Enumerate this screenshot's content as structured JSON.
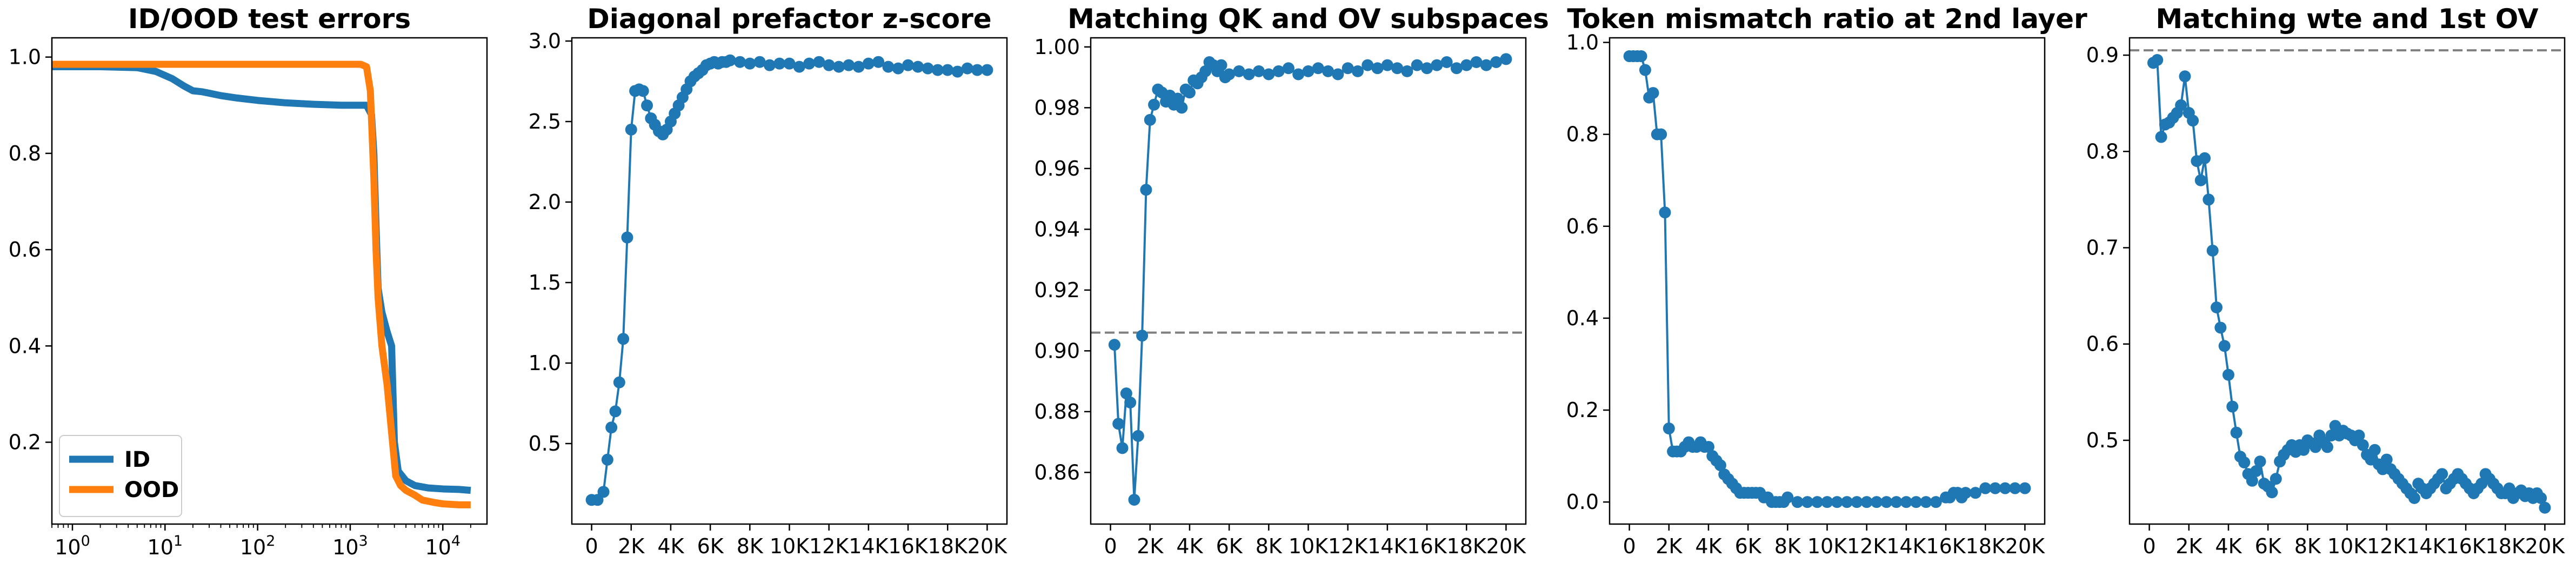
{
  "colors": {
    "blue": "#1f77b4",
    "orange": "#ff7f0e",
    "ref": "#808080"
  },
  "chart_data": [
    {
      "type": "line",
      "title": "ID/OOD test errors",
      "xscale": "log",
      "xlim": [
        0.6,
        30000
      ],
      "ylim": [
        0.03,
        1.04
      ],
      "xticks": [
        1,
        10,
        100,
        1000,
        10000
      ],
      "xtick_labels": [
        {
          "base": "10",
          "exp": "0"
        },
        {
          "base": "10",
          "exp": "1"
        },
        {
          "base": "10",
          "exp": "2"
        },
        {
          "base": "10",
          "exp": "3"
        },
        {
          "base": "10",
          "exp": "4"
        }
      ],
      "yticks": [
        0.2,
        0.4,
        0.6,
        0.8,
        1.0
      ],
      "ytick_labels": [
        "0.2",
        "0.4",
        "0.6",
        "0.8",
        "1.0"
      ],
      "legend": "lower-left",
      "series": [
        {
          "name": "ID",
          "color": "#1f77b4",
          "x": [
            0.6,
            2,
            5,
            8,
            12,
            16,
            20,
            25,
            30,
            40,
            60,
            100,
            200,
            400,
            800,
            1200,
            1500,
            1700,
            1800,
            1900,
            2000,
            2200,
            2500,
            2800,
            3000,
            3300,
            4000,
            5000,
            7000,
            10000,
            15000,
            20000
          ],
          "y": [
            0.98,
            0.98,
            0.978,
            0.97,
            0.955,
            0.94,
            0.93,
            0.928,
            0.925,
            0.92,
            0.915,
            0.91,
            0.905,
            0.902,
            0.9,
            0.9,
            0.9,
            0.88,
            0.8,
            0.65,
            0.52,
            0.47,
            0.43,
            0.4,
            0.2,
            0.14,
            0.12,
            0.11,
            0.105,
            0.103,
            0.102,
            0.1
          ]
        },
        {
          "name": "OOD",
          "color": "#ff7f0e",
          "x": [
            0.6,
            10,
            100,
            1000,
            1300,
            1500,
            1650,
            1800,
            1900,
            2000,
            2200,
            2500,
            2800,
            3100,
            3500,
            4000,
            5000,
            6000,
            8000,
            10000,
            15000,
            20000
          ],
          "y": [
            0.985,
            0.985,
            0.985,
            0.985,
            0.985,
            0.98,
            0.93,
            0.75,
            0.6,
            0.5,
            0.4,
            0.32,
            0.22,
            0.13,
            0.11,
            0.1,
            0.09,
            0.08,
            0.075,
            0.072,
            0.07,
            0.07
          ]
        }
      ]
    },
    {
      "type": "line",
      "title": "Diagonal prefactor z-score",
      "xlim": [
        -1000,
        21000
      ],
      "ylim": [
        0.0,
        3.02
      ],
      "xticks": [
        0,
        2000,
        4000,
        6000,
        8000,
        10000,
        12000,
        14000,
        16000,
        18000,
        20000
      ],
      "xtick_labels": [
        "0",
        "2K",
        "4K",
        "6K",
        "8K",
        "10K",
        "12K",
        "14K",
        "16K",
        "18K",
        "20K"
      ],
      "yticks": [
        0.5,
        1.0,
        1.5,
        2.0,
        2.5,
        3.0
      ],
      "ytick_labels": [
        "0.5",
        "1.0",
        "1.5",
        "2.0",
        "2.5",
        "3.0"
      ],
      "series": [
        {
          "color": "#1f77b4",
          "markers": true,
          "x": [
            0,
            300,
            600,
            800,
            1000,
            1200,
            1400,
            1600,
            1800,
            2000,
            2200,
            2400,
            2600,
            2800,
            3000,
            3200,
            3400,
            3600,
            3800,
            4000,
            4200,
            4400,
            4600,
            4800,
            5000,
            5200,
            5400,
            5600,
            5800,
            6000,
            6200,
            6400,
            6600,
            6800,
            7000,
            7500,
            8000,
            8500,
            9000,
            9500,
            10000,
            10500,
            11000,
            11500,
            12000,
            12500,
            13000,
            13500,
            14000,
            14500,
            15000,
            15500,
            16000,
            16500,
            17000,
            17500,
            18000,
            18500,
            19000,
            19500,
            20000
          ],
          "y": [
            0.15,
            0.15,
            0.2,
            0.4,
            0.6,
            0.7,
            0.88,
            1.15,
            1.78,
            2.45,
            2.69,
            2.7,
            2.69,
            2.6,
            2.52,
            2.48,
            2.44,
            2.42,
            2.45,
            2.5,
            2.55,
            2.6,
            2.65,
            2.7,
            2.75,
            2.78,
            2.8,
            2.82,
            2.85,
            2.86,
            2.87,
            2.86,
            2.87,
            2.87,
            2.88,
            2.87,
            2.86,
            2.87,
            2.85,
            2.86,
            2.86,
            2.84,
            2.86,
            2.87,
            2.85,
            2.84,
            2.85,
            2.84,
            2.86,
            2.87,
            2.84,
            2.83,
            2.85,
            2.84,
            2.83,
            2.82,
            2.82,
            2.81,
            2.83,
            2.82,
            2.82
          ]
        }
      ]
    },
    {
      "type": "line",
      "title": "Matching QK and OV subspaces",
      "xlim": [
        -1000,
        21000
      ],
      "ylim": [
        0.843,
        1.003
      ],
      "xticks": [
        0,
        2000,
        4000,
        6000,
        8000,
        10000,
        12000,
        14000,
        16000,
        18000,
        20000
      ],
      "xtick_labels": [
        "0",
        "2K",
        "4K",
        "6K",
        "8K",
        "10K",
        "12K",
        "14K",
        "16K",
        "18K",
        "20K"
      ],
      "yticks": [
        0.86,
        0.88,
        0.9,
        0.92,
        0.94,
        0.96,
        0.98,
        1.0
      ],
      "ytick_labels": [
        "0.86",
        "0.88",
        "0.90",
        "0.92",
        "0.94",
        "0.96",
        "0.98",
        "1.00"
      ],
      "hline": 0.906,
      "series": [
        {
          "color": "#1f77b4",
          "markers": true,
          "x": [
            200,
            400,
            600,
            800,
            1000,
            1200,
            1400,
            1600,
            1800,
            2000,
            2200,
            2400,
            2600,
            2800,
            3000,
            3200,
            3400,
            3600,
            3800,
            4000,
            4200,
            4400,
            4600,
            4800,
            5000,
            5200,
            5400,
            5600,
            5800,
            6000,
            6500,
            7000,
            7500,
            8000,
            8500,
            9000,
            9500,
            10000,
            10500,
            11000,
            11500,
            12000,
            12500,
            13000,
            13500,
            14000,
            14500,
            15000,
            15500,
            16000,
            16500,
            17000,
            17500,
            18000,
            18500,
            19000,
            19500,
            20000
          ],
          "y": [
            0.902,
            0.876,
            0.868,
            0.886,
            0.883,
            0.851,
            0.872,
            0.905,
            0.953,
            0.976,
            0.981,
            0.986,
            0.985,
            0.982,
            0.984,
            0.981,
            0.983,
            0.98,
            0.986,
            0.985,
            0.989,
            0.988,
            0.99,
            0.992,
            0.995,
            0.994,
            0.992,
            0.994,
            0.99,
            0.991,
            0.992,
            0.991,
            0.992,
            0.991,
            0.992,
            0.993,
            0.991,
            0.992,
            0.993,
            0.992,
            0.991,
            0.993,
            0.992,
            0.994,
            0.993,
            0.994,
            0.993,
            0.992,
            0.994,
            0.993,
            0.994,
            0.995,
            0.993,
            0.994,
            0.995,
            0.994,
            0.995,
            0.996
          ]
        }
      ]
    },
    {
      "type": "line",
      "title": "Token mismatch ratio at 2nd layer",
      "xlim": [
        -1000,
        21000
      ],
      "ylim": [
        -0.048,
        1.01
      ],
      "xticks": [
        0,
        2000,
        4000,
        6000,
        8000,
        10000,
        12000,
        14000,
        16000,
        18000,
        20000
      ],
      "xtick_labels": [
        "0",
        "2K",
        "4K",
        "6K",
        "8K",
        "10K",
        "12K",
        "14K",
        "16K",
        "18K",
        "20K"
      ],
      "yticks": [
        0.0,
        0.2,
        0.4,
        0.6,
        0.8,
        1.0
      ],
      "ytick_labels": [
        "0.0",
        "0.2",
        "0.4",
        "0.6",
        "0.8",
        "1.0"
      ],
      "series": [
        {
          "color": "#1f77b4",
          "markers": true,
          "x": [
            0,
            200,
            400,
            600,
            800,
            1000,
            1200,
            1400,
            1600,
            1800,
            2000,
            2200,
            2400,
            2600,
            2800,
            3000,
            3200,
            3400,
            3600,
            3800,
            4000,
            4200,
            4400,
            4600,
            4800,
            5000,
            5200,
            5400,
            5600,
            5800,
            6000,
            6200,
            6400,
            6600,
            6800,
            7000,
            7200,
            7400,
            7600,
            7800,
            8000,
            8500,
            9000,
            9500,
            10000,
            10500,
            11000,
            11500,
            12000,
            12500,
            13000,
            13500,
            14000,
            14500,
            15000,
            15500,
            16000,
            16200,
            16400,
            16600,
            16800,
            17000,
            17500,
            18000,
            18500,
            19000,
            19500,
            20000
          ],
          "y": [
            0.97,
            0.97,
            0.97,
            0.97,
            0.94,
            0.88,
            0.89,
            0.8,
            0.8,
            0.63,
            0.16,
            0.11,
            0.11,
            0.11,
            0.12,
            0.13,
            0.12,
            0.12,
            0.13,
            0.12,
            0.12,
            0.1,
            0.09,
            0.08,
            0.06,
            0.05,
            0.04,
            0.03,
            0.02,
            0.02,
            0.02,
            0.02,
            0.02,
            0.02,
            0.01,
            0.01,
            0.0,
            0.0,
            0.0,
            0.0,
            0.01,
            0.0,
            0.0,
            0.0,
            0.0,
            0.0,
            0.0,
            0.0,
            0.0,
            0.0,
            0.0,
            0.0,
            0.0,
            0.0,
            0.0,
            0.0,
            0.01,
            0.01,
            0.02,
            0.02,
            0.01,
            0.02,
            0.02,
            0.03,
            0.03,
            0.03,
            0.03,
            0.03
          ]
        }
      ]
    },
    {
      "type": "line",
      "title": "Matching wte and 1st OV",
      "xlim": [
        -1000,
        21000
      ],
      "ylim": [
        0.413,
        0.918
      ],
      "xticks": [
        0,
        2000,
        4000,
        6000,
        8000,
        10000,
        12000,
        14000,
        16000,
        18000,
        20000
      ],
      "xtick_labels": [
        "0",
        "2K",
        "4K",
        "6K",
        "8K",
        "10K",
        "12K",
        "14K",
        "16K",
        "18K",
        "20K"
      ],
      "yticks": [
        0.5,
        0.6,
        0.7,
        0.8,
        0.9
      ],
      "ytick_labels": [
        "0.5",
        "0.6",
        "0.7",
        "0.8",
        "0.9"
      ],
      "hline": 0.905,
      "series": [
        {
          "color": "#1f77b4",
          "markers": true,
          "x": [
            200,
            400,
            600,
            800,
            1000,
            1200,
            1400,
            1600,
            1800,
            2000,
            2200,
            2400,
            2600,
            2800,
            3000,
            3200,
            3400,
            3600,
            3800,
            4000,
            4200,
            4400,
            4600,
            4800,
            5000,
            5200,
            5400,
            5600,
            5800,
            6000,
            6200,
            6400,
            6600,
            6800,
            7000,
            7200,
            7400,
            7600,
            7800,
            8000,
            8200,
            8400,
            8600,
            8800,
            9000,
            9200,
            9400,
            9600,
            9800,
            10000,
            10200,
            10400,
            10600,
            10800,
            11000,
            11200,
            11400,
            11600,
            11800,
            12000,
            12200,
            12400,
            12600,
            12800,
            13000,
            13200,
            13400,
            13600,
            13800,
            14000,
            14200,
            14400,
            14600,
            14800,
            15000,
            15200,
            15400,
            15600,
            15800,
            16000,
            16200,
            16400,
            16600,
            16800,
            17000,
            17200,
            17400,
            17600,
            17800,
            18000,
            18200,
            18400,
            18600,
            18800,
            19000,
            19200,
            19400,
            19600,
            19800,
            20000
          ],
          "y": [
            0.892,
            0.895,
            0.815,
            0.828,
            0.83,
            0.835,
            0.84,
            0.848,
            0.878,
            0.84,
            0.832,
            0.79,
            0.77,
            0.793,
            0.75,
            0.697,
            0.638,
            0.617,
            0.598,
            0.568,
            0.535,
            0.508,
            0.483,
            0.477,
            0.465,
            0.458,
            0.468,
            0.478,
            0.455,
            0.452,
            0.446,
            0.46,
            0.478,
            0.485,
            0.49,
            0.495,
            0.488,
            0.495,
            0.49,
            0.5,
            0.497,
            0.493,
            0.505,
            0.498,
            0.493,
            0.505,
            0.515,
            0.505,
            0.51,
            0.507,
            0.505,
            0.5,
            0.505,
            0.495,
            0.485,
            0.48,
            0.49,
            0.475,
            0.47,
            0.48,
            0.47,
            0.465,
            0.46,
            0.455,
            0.45,
            0.445,
            0.44,
            0.455,
            0.45,
            0.445,
            0.45,
            0.455,
            0.46,
            0.465,
            0.45,
            0.455,
            0.46,
            0.465,
            0.46,
            0.455,
            0.45,
            0.445,
            0.45,
            0.455,
            0.465,
            0.46,
            0.455,
            0.45,
            0.445,
            0.445,
            0.45,
            0.44,
            0.445,
            0.448,
            0.442,
            0.445,
            0.44,
            0.445,
            0.44,
            0.43
          ]
        }
      ]
    }
  ]
}
